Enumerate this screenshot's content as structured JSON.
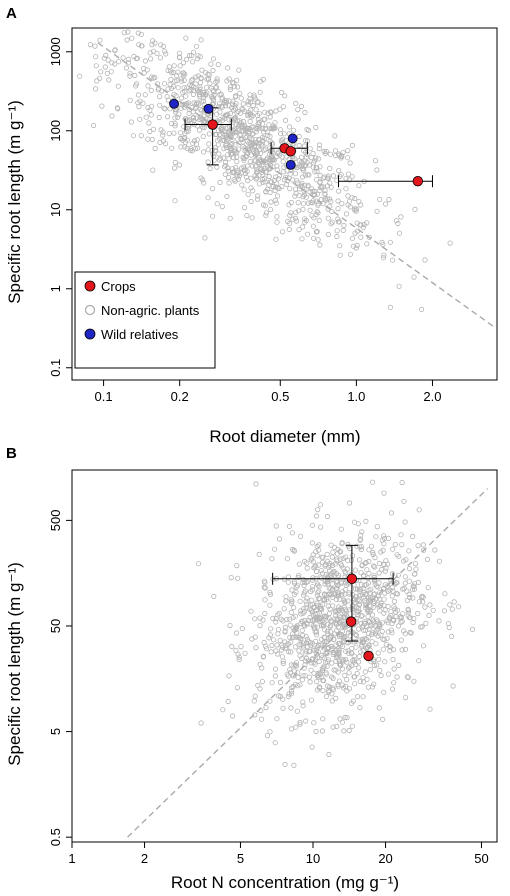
{
  "chart_data": [
    {
      "panel_label": "A",
      "type": "scatter",
      "xlabel": "Root diameter (mm)",
      "ylabel": "Specific root length (m g⁻¹)",
      "xscale": "log",
      "yscale": "log",
      "xlim": [
        0.075,
        3.6
      ],
      "ylim": [
        0.07,
        2000
      ],
      "xticks": [
        0.1,
        0.2,
        0.5,
        1.0,
        2.0
      ],
      "xtick_labels": [
        "0.1",
        "0.2",
        "0.5",
        "1.0",
        "2.0"
      ],
      "yticks": [
        0.1,
        1,
        10,
        100,
        1000
      ],
      "ytick_labels": [
        "0.1",
        "1",
        "10",
        "100",
        "1000"
      ],
      "legend": {
        "placement": "bottom-left",
        "items": [
          {
            "label": "Crops",
            "fill": "#e3161b",
            "stroke": "#000000"
          },
          {
            "label": "Non-agric. plants",
            "fill": "#ffffff",
            "stroke": "#aaaaaa"
          },
          {
            "label": "Wild relatives",
            "fill": "#1f24c4",
            "stroke": "#000000"
          }
        ]
      },
      "trend_line": {
        "from": [
          0.095,
          1300
        ],
        "to": [
          3.5,
          0.33
        ]
      },
      "background_cloud": {
        "count": 1100,
        "center_log10": [
          -0.45,
          1.88
        ],
        "slope": -2.3
      },
      "crops": [
        {
          "x": 0.27,
          "y": 120,
          "xerr": [
            0.21,
            0.32
          ],
          "yerr": [
            37,
            195
          ]
        },
        {
          "x": 0.52,
          "y": 60,
          "xerr": [
            0.46,
            0.64
          ],
          "yerr": null
        },
        {
          "x": 0.55,
          "y": 55,
          "xerr": null,
          "yerr": null
        },
        {
          "x": 1.75,
          "y": 23,
          "xerr": [
            0.85,
            2.0
          ],
          "yerr": null
        }
      ],
      "wild_relatives": [
        {
          "x": 0.19,
          "y": 220
        },
        {
          "x": 0.26,
          "y": 190
        },
        {
          "x": 0.56,
          "y": 80
        },
        {
          "x": 0.55,
          "y": 37
        }
      ]
    },
    {
      "panel_label": "B",
      "type": "scatter",
      "xlabel": "Root N concentration (mg g⁻¹)",
      "ylabel": "Specific root length (m g⁻¹)",
      "xscale": "log",
      "yscale": "log",
      "xlim": [
        1,
        58
      ],
      "ylim": [
        0.45,
        1500
      ],
      "xticks": [
        1,
        2,
        5,
        10,
        20,
        50
      ],
      "xtick_labels": [
        "1",
        "2",
        "5",
        "10",
        "20",
        "50"
      ],
      "yticks": [
        0.5,
        5,
        50,
        500
      ],
      "ytick_labels": [
        "0.5",
        "5",
        "50",
        "500"
      ],
      "trend_line": {
        "from": [
          1.7,
          0.5
        ],
        "to": [
          53,
          1000
        ]
      },
      "background_cloud": {
        "count": 1100,
        "center_log10": [
          1.1,
          1.75
        ],
        "slope": 0.0
      },
      "crops": [
        {
          "x": 14.5,
          "y": 140,
          "xerr": [
            6.8,
            21.5
          ],
          "yerr": [
            36,
            290
          ]
        },
        {
          "x": 14.4,
          "y": 55,
          "xerr": null,
          "yerr": null
        },
        {
          "x": 17,
          "y": 26,
          "xerr": null,
          "yerr": null
        }
      ]
    }
  ]
}
